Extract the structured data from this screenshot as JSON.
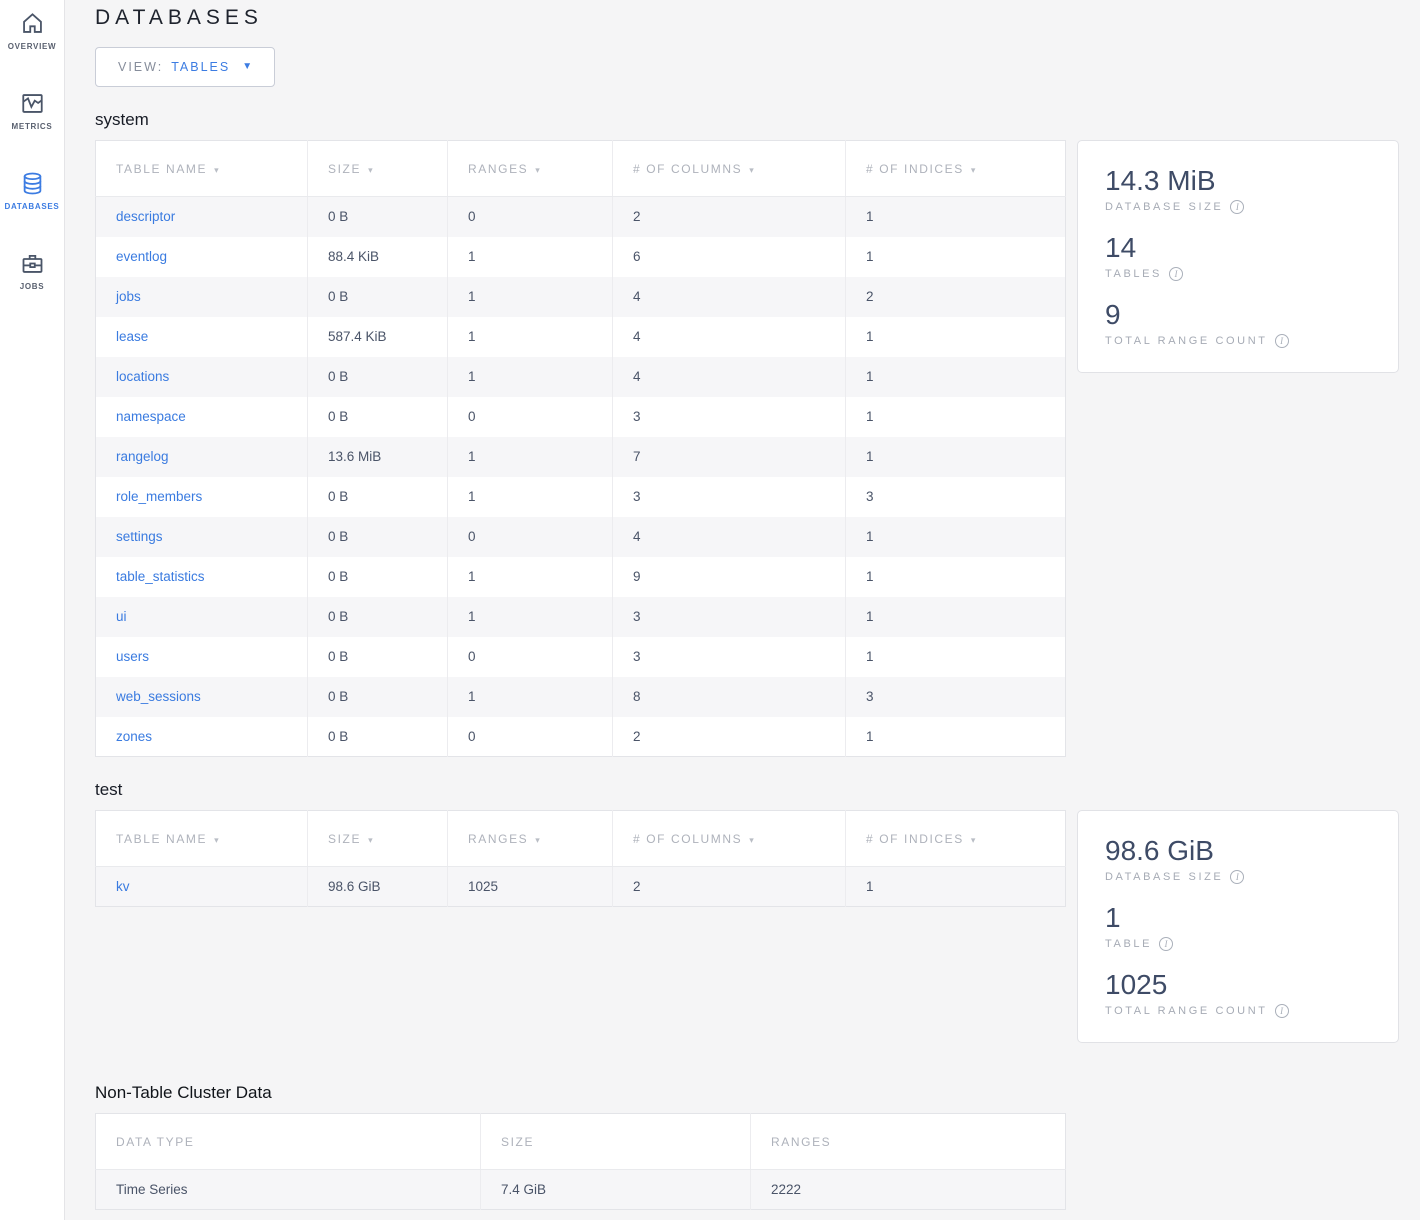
{
  "page": {
    "title": "DATABASES"
  },
  "view_selector": {
    "label": "VIEW:",
    "value": "TABLES",
    "caret_icon": "▼"
  },
  "sidebar": {
    "items": [
      {
        "label": "OVERVIEW",
        "icon": "home-icon",
        "active": false
      },
      {
        "label": "METRICS",
        "icon": "metrics-icon",
        "active": false
      },
      {
        "label": "DATABASES",
        "icon": "database-icon",
        "active": true
      },
      {
        "label": "JOBS",
        "icon": "briefcase-icon",
        "active": false
      }
    ]
  },
  "colors": {
    "accent_blue": "#3c7ce2",
    "link_blue": "#3a7be0",
    "stat_value": "#3e4b66",
    "label_gray": "#a6abb5",
    "page_background": "#f5f5f6",
    "row_alt": "#f6f6f8"
  },
  "databases": [
    {
      "name": "system",
      "columns": [
        "TABLE NAME",
        "SIZE",
        "RANGES",
        "# OF COLUMNS",
        "# OF INDICES"
      ],
      "sortable": true,
      "rows": [
        [
          "descriptor",
          "0 B",
          "0",
          "2",
          "1"
        ],
        [
          "eventlog",
          "88.4 KiB",
          "1",
          "6",
          "1"
        ],
        [
          "jobs",
          "0 B",
          "1",
          "4",
          "2"
        ],
        [
          "lease",
          "587.4 KiB",
          "1",
          "4",
          "1"
        ],
        [
          "locations",
          "0 B",
          "1",
          "4",
          "1"
        ],
        [
          "namespace",
          "0 B",
          "0",
          "3",
          "1"
        ],
        [
          "rangelog",
          "13.6 MiB",
          "1",
          "7",
          "1"
        ],
        [
          "role_members",
          "0 B",
          "1",
          "3",
          "3"
        ],
        [
          "settings",
          "0 B",
          "0",
          "4",
          "1"
        ],
        [
          "table_statistics",
          "0 B",
          "1",
          "9",
          "1"
        ],
        [
          "ui",
          "0 B",
          "1",
          "3",
          "1"
        ],
        [
          "users",
          "0 B",
          "0",
          "3",
          "1"
        ],
        [
          "web_sessions",
          "0 B",
          "1",
          "8",
          "3"
        ],
        [
          "zones",
          "0 B",
          "0",
          "2",
          "1"
        ]
      ],
      "stats": [
        {
          "value": "14.3 MiB",
          "label": "DATABASE SIZE"
        },
        {
          "value": "14",
          "label": "TABLES"
        },
        {
          "value": "9",
          "label": "TOTAL RANGE COUNT"
        }
      ]
    },
    {
      "name": "test",
      "columns": [
        "TABLE NAME",
        "SIZE",
        "RANGES",
        "# OF COLUMNS",
        "# OF INDICES"
      ],
      "sortable": true,
      "rows": [
        [
          "kv",
          "98.6 GiB",
          "1025",
          "2",
          "1"
        ]
      ],
      "stats": [
        {
          "value": "98.6 GiB",
          "label": "DATABASE SIZE"
        },
        {
          "value": "1",
          "label": "TABLE"
        },
        {
          "value": "1025",
          "label": "TOTAL RANGE COUNT"
        }
      ]
    }
  ],
  "non_table": {
    "title": "Non-Table Cluster Data",
    "columns": [
      "DATA TYPE",
      "SIZE",
      "RANGES"
    ],
    "sortable": false,
    "rows": [
      [
        "Time Series",
        "7.4 GiB",
        "2222"
      ]
    ]
  }
}
